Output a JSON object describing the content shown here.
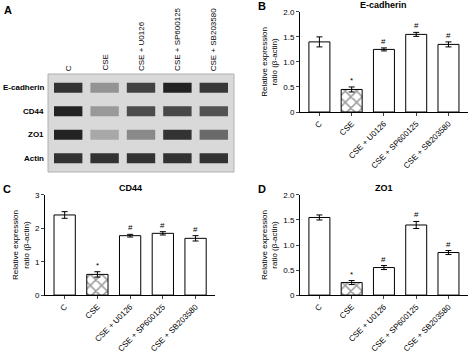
{
  "blot": {
    "panel": "A",
    "lanes": [
      "C",
      "CSE",
      "CSE + U0126",
      "CSE + SP600125",
      "CSE + SB203580"
    ],
    "rows": [
      "E-cadherin",
      "CD44",
      "ZO1",
      "Actin"
    ]
  },
  "chart_data": [
    {
      "type": "bar",
      "panel": "B",
      "title": "E-cadherin",
      "ylabel": "Relative expression\nratio (β-actin)",
      "categories": [
        "C",
        "CSE",
        "CSE + U0126",
        "CSE + SP600125",
        "CSE + SB203580"
      ],
      "values": [
        1.4,
        0.45,
        1.25,
        1.55,
        1.35
      ],
      "errors": [
        0.1,
        0.05,
        0.03,
        0.04,
        0.05
      ],
      "value_marks": [
        null,
        "*",
        "#",
        "#",
        "#"
      ],
      "colors": [
        "#ffffff",
        "#9e9e9e",
        "#ffffff",
        "#ffffff",
        "#ffffff"
      ],
      "ylim": [
        0,
        2
      ],
      "yticks": [
        0,
        0.5,
        {
          "value": 1,
          "label": "1.0"
        },
        1.5,
        {
          "value": 2,
          "label": "2.0"
        }
      ],
      "grid": false
    },
    {
      "type": "bar",
      "panel": "C",
      "title": "CD44",
      "ylabel": "Relative expression\nratio (β-actin)",
      "categories": [
        "C",
        "CSE",
        "CSE + U0126",
        "CSE + SP600125",
        "CSE + SB203580"
      ],
      "values": [
        2.4,
        0.62,
        1.78,
        1.85,
        1.7
      ],
      "errors": [
        0.1,
        0.08,
        0.04,
        0.05,
        0.08
      ],
      "value_marks": [
        null,
        "*",
        "#",
        "#",
        "#"
      ],
      "colors": [
        "#ffffff",
        "#9e9e9e",
        "#ffffff",
        "#ffffff",
        "#ffffff"
      ],
      "ylim": [
        0,
        3
      ],
      "yticks": [
        0,
        1,
        2,
        3
      ],
      "grid": false
    },
    {
      "type": "bar",
      "panel": "D",
      "title": "ZO1",
      "ylabel": "Relative expression\nratio (β-actin)",
      "categories": [
        "C",
        "CSE",
        "CSE + U0126",
        "CSE + SP600125",
        "CSE + SB203580"
      ],
      "values": [
        1.55,
        0.25,
        0.55,
        1.4,
        0.85
      ],
      "errors": [
        0.05,
        0.04,
        0.04,
        0.07,
        0.04
      ],
      "value_marks": [
        null,
        "*",
        "#",
        "#",
        "#"
      ],
      "colors": [
        "#ffffff",
        "#9e9e9e",
        "#ffffff",
        "#ffffff",
        "#ffffff"
      ],
      "ylim": [
        0,
        2
      ],
      "yticks": [
        0,
        0.5,
        {
          "value": 1,
          "label": "1.0"
        },
        1.5,
        {
          "value": 2,
          "label": "2.0"
        }
      ],
      "grid": false
    }
  ]
}
